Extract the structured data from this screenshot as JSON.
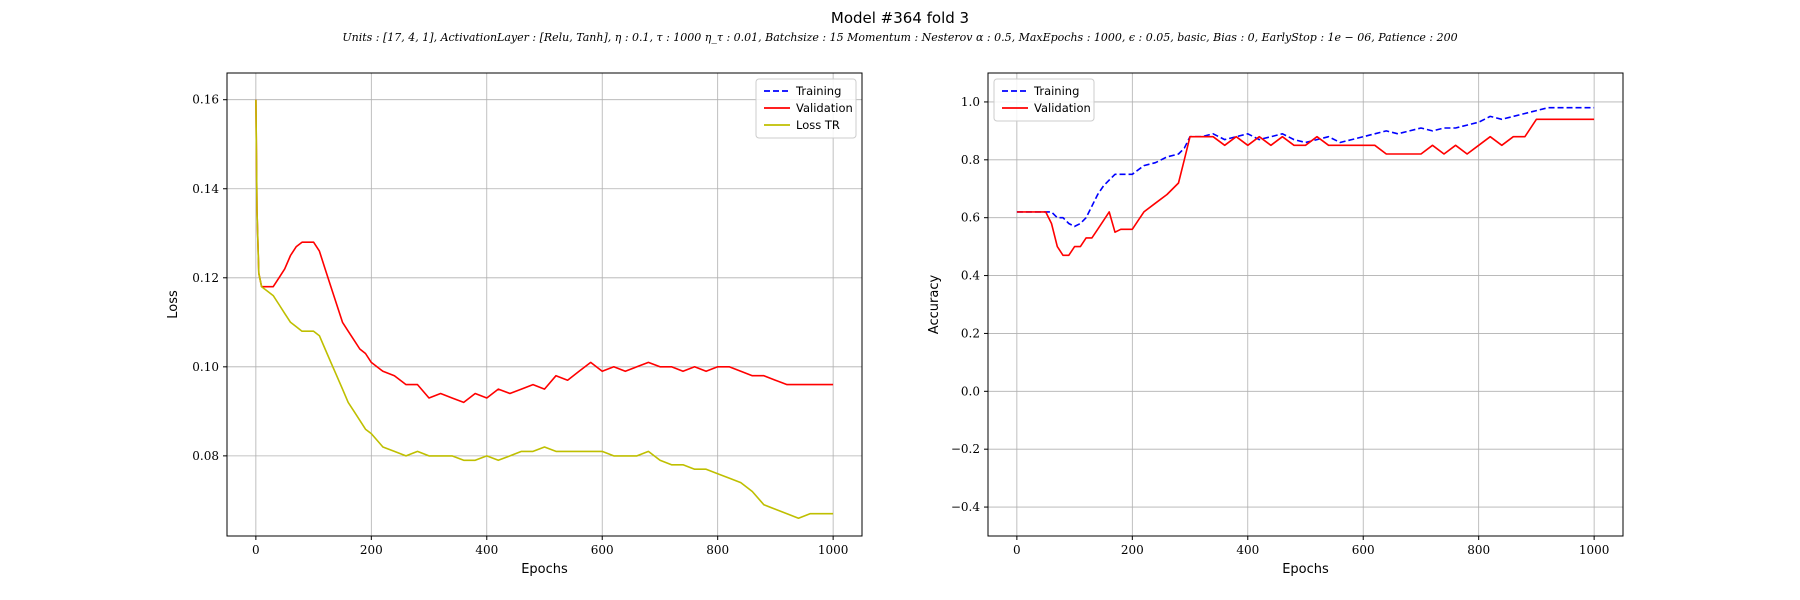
{
  "figure": {
    "title": "Model #364 fold 3",
    "subtitle": "Units : [17, 4, 1], ActivationLayer : [Relu, Tanh], η : 0.1, τ : 1000 η_τ : 0.01, Batchsize : 15 Momentum : Nesterov α : 0.5, MaxEpochs : 1000, ϵ : 0.05, basic, Bias : 0, EarlyStop : 1e − 06, Patience : 200"
  },
  "chart_data": [
    {
      "type": "line",
      "title": "",
      "xlabel": "Epochs",
      "ylabel": "Loss",
      "xlim": [
        -50,
        1050
      ],
      "ylim": [
        0.062,
        0.166
      ],
      "xticks": [
        0,
        200,
        400,
        600,
        800,
        1000
      ],
      "yticks": [
        0.08,
        0.1,
        0.12,
        0.14,
        0.16
      ],
      "ytick_labels": [
        "0.08",
        "0.10",
        "0.12",
        "0.14",
        "0.16"
      ],
      "grid": true,
      "legend_position": "top-right",
      "series": [
        {
          "name": "Training",
          "color": "#0000ff",
          "style": "dashed",
          "x": [],
          "y": []
        },
        {
          "name": "Validation",
          "color": "#ff0000",
          "style": "solid",
          "x": [
            0,
            2,
            5,
            10,
            20,
            30,
            40,
            50,
            60,
            70,
            80,
            90,
            100,
            110,
            120,
            130,
            140,
            150,
            160,
            170,
            180,
            190,
            200,
            220,
            240,
            260,
            280,
            300,
            320,
            340,
            360,
            380,
            400,
            420,
            440,
            460,
            480,
            500,
            520,
            540,
            560,
            580,
            600,
            620,
            640,
            660,
            680,
            700,
            720,
            740,
            760,
            780,
            800,
            820,
            840,
            860,
            880,
            900,
            920,
            940,
            960,
            980,
            1000
          ],
          "y": [
            0.16,
            0.135,
            0.121,
            0.118,
            0.118,
            0.118,
            0.12,
            0.122,
            0.125,
            0.127,
            0.128,
            0.128,
            0.128,
            0.126,
            0.122,
            0.118,
            0.114,
            0.11,
            0.108,
            0.106,
            0.104,
            0.103,
            0.101,
            0.099,
            0.098,
            0.096,
            0.096,
            0.093,
            0.094,
            0.093,
            0.092,
            0.094,
            0.093,
            0.095,
            0.094,
            0.095,
            0.096,
            0.095,
            0.098,
            0.097,
            0.099,
            0.101,
            0.099,
            0.1,
            0.099,
            0.1,
            0.101,
            0.1,
            0.1,
            0.099,
            0.1,
            0.099,
            0.1,
            0.1,
            0.099,
            0.098,
            0.098,
            0.097,
            0.096,
            0.096,
            0.096,
            0.096,
            0.096
          ]
        },
        {
          "name": "Loss TR",
          "color": "#bfbf00",
          "style": "solid",
          "x": [
            0,
            2,
            5,
            10,
            20,
            30,
            40,
            50,
            60,
            70,
            80,
            90,
            100,
            110,
            120,
            130,
            140,
            150,
            160,
            170,
            180,
            190,
            200,
            220,
            240,
            260,
            280,
            300,
            320,
            340,
            360,
            380,
            400,
            420,
            440,
            460,
            480,
            500,
            520,
            540,
            560,
            580,
            600,
            620,
            640,
            660,
            680,
            700,
            720,
            740,
            760,
            780,
            800,
            820,
            840,
            860,
            880,
            900,
            920,
            940,
            960,
            980,
            1000
          ],
          "y": [
            0.16,
            0.135,
            0.121,
            0.118,
            0.117,
            0.116,
            0.114,
            0.112,
            0.11,
            0.109,
            0.108,
            0.108,
            0.108,
            0.107,
            0.104,
            0.101,
            0.098,
            0.095,
            0.092,
            0.09,
            0.088,
            0.086,
            0.085,
            0.082,
            0.081,
            0.08,
            0.081,
            0.08,
            0.08,
            0.08,
            0.079,
            0.079,
            0.08,
            0.079,
            0.08,
            0.081,
            0.081,
            0.082,
            0.081,
            0.081,
            0.081,
            0.081,
            0.081,
            0.08,
            0.08,
            0.08,
            0.081,
            0.079,
            0.078,
            0.078,
            0.077,
            0.077,
            0.076,
            0.075,
            0.074,
            0.072,
            0.069,
            0.068,
            0.067,
            0.066,
            0.067,
            0.067,
            0.067
          ]
        }
      ]
    },
    {
      "type": "line",
      "title": "",
      "xlabel": "Epochs",
      "ylabel": "Accuracy",
      "xlim": [
        -50,
        1050
      ],
      "ylim": [
        -0.5,
        1.1
      ],
      "xticks": [
        0,
        200,
        400,
        600,
        800,
        1000
      ],
      "yticks": [
        -0.4,
        -0.2,
        0.0,
        0.2,
        0.4,
        0.6,
        0.8,
        1.0
      ],
      "ytick_labels": [
        "−0.4",
        "−0.2",
        "0.0",
        "0.2",
        "0.4",
        "0.6",
        "0.8",
        "1.0"
      ],
      "grid": true,
      "legend_position": "top-left",
      "series": [
        {
          "name": "Training",
          "color": "#0000ff",
          "style": "dashed",
          "x": [
            0,
            30,
            50,
            60,
            70,
            80,
            90,
            100,
            110,
            120,
            130,
            140,
            150,
            160,
            170,
            180,
            190,
            200,
            220,
            240,
            260,
            280,
            290,
            300,
            320,
            340,
            360,
            380,
            400,
            420,
            440,
            460,
            480,
            500,
            520,
            540,
            560,
            580,
            600,
            620,
            640,
            660,
            680,
            700,
            720,
            740,
            760,
            780,
            800,
            820,
            840,
            860,
            880,
            900,
            920,
            940,
            960,
            980,
            1000
          ],
          "y": [
            0.62,
            0.62,
            0.62,
            0.62,
            0.6,
            0.6,
            0.58,
            0.57,
            0.58,
            0.6,
            0.64,
            0.68,
            0.71,
            0.73,
            0.75,
            0.75,
            0.75,
            0.75,
            0.78,
            0.79,
            0.81,
            0.82,
            0.84,
            0.88,
            0.88,
            0.89,
            0.87,
            0.88,
            0.89,
            0.87,
            0.88,
            0.89,
            0.87,
            0.86,
            0.87,
            0.88,
            0.86,
            0.87,
            0.88,
            0.89,
            0.9,
            0.89,
            0.9,
            0.91,
            0.9,
            0.91,
            0.91,
            0.92,
            0.93,
            0.95,
            0.94,
            0.95,
            0.96,
            0.97,
            0.98,
            0.98,
            0.98,
            0.98,
            0.98
          ]
        },
        {
          "name": "Validation",
          "color": "#ff0000",
          "style": "solid",
          "x": [
            0,
            30,
            50,
            60,
            70,
            80,
            90,
            100,
            110,
            120,
            130,
            140,
            150,
            160,
            170,
            180,
            200,
            210,
            220,
            240,
            260,
            280,
            290,
            300,
            320,
            340,
            360,
            380,
            400,
            420,
            440,
            460,
            480,
            500,
            520,
            540,
            560,
            580,
            600,
            620,
            640,
            660,
            680,
            700,
            720,
            740,
            760,
            780,
            800,
            820,
            840,
            860,
            880,
            900,
            920,
            940,
            960,
            980,
            1000
          ],
          "y": [
            0.62,
            0.62,
            0.62,
            0.58,
            0.5,
            0.47,
            0.47,
            0.5,
            0.5,
            0.53,
            0.53,
            0.56,
            0.59,
            0.62,
            0.55,
            0.56,
            0.56,
            0.59,
            0.62,
            0.65,
            0.68,
            0.72,
            0.8,
            0.88,
            0.88,
            0.88,
            0.85,
            0.88,
            0.85,
            0.88,
            0.85,
            0.88,
            0.85,
            0.85,
            0.88,
            0.85,
            0.85,
            0.85,
            0.85,
            0.85,
            0.82,
            0.82,
            0.82,
            0.82,
            0.85,
            0.82,
            0.85,
            0.82,
            0.85,
            0.88,
            0.85,
            0.88,
            0.88,
            0.94,
            0.94,
            0.94,
            0.94,
            0.94,
            0.94
          ]
        }
      ]
    }
  ]
}
